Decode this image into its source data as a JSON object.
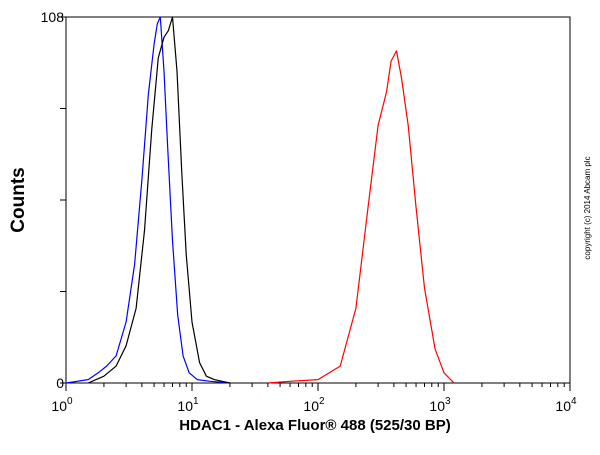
{
  "chart_data": {
    "type": "line",
    "title": "",
    "xlabel": "HDAC1 - Alexa Fluor® 488 (525/30 BP)",
    "ylabel": "Counts",
    "x_scale": "log",
    "xlim": [
      1,
      10000
    ],
    "ylim": [
      0,
      108
    ],
    "x_ticks": [
      {
        "base": "10",
        "exp": "0"
      },
      {
        "base": "10",
        "exp": "1"
      },
      {
        "base": "10",
        "exp": "2"
      },
      {
        "base": "10",
        "exp": "3"
      },
      {
        "base": "10",
        "exp": "4"
      }
    ],
    "y_ticks": [
      "0",
      "108"
    ],
    "grid": false,
    "legend": "none",
    "copyright": "copyright (c) 2014 Abcam plc",
    "series": [
      {
        "color": "#0000ff",
        "x": [
          1.0,
          1.5,
          1.8,
          2.1,
          2.5,
          3.0,
          3.5,
          4.0,
          4.5,
          5.0,
          5.3,
          5.6,
          6.0,
          6.4,
          7.0,
          7.7,
          8.5,
          9.5,
          11.0,
          14.0,
          20.0
        ],
        "y": [
          0,
          1,
          3,
          5,
          8,
          18,
          35,
          60,
          85,
          100,
          106,
          108,
          92,
          70,
          42,
          20,
          8,
          3,
          1,
          0.5,
          0
        ]
      },
      {
        "color": "#000000",
        "x": [
          1.5,
          2.0,
          2.5,
          3.0,
          3.6,
          4.2,
          4.8,
          5.4,
          6.0,
          6.5,
          7.0,
          7.6,
          8.3,
          9.0,
          10.0,
          11.5,
          13.0,
          15.0,
          20.0
        ],
        "y": [
          0,
          2,
          5,
          11,
          22,
          45,
          75,
          96,
          102,
          104,
          108,
          92,
          62,
          38,
          18,
          6,
          2,
          1,
          0
        ]
      },
      {
        "color": "#ff0000",
        "x": [
          40,
          60,
          100,
          150,
          200,
          250,
          300,
          350,
          380,
          420,
          460,
          520,
          600,
          700,
          850,
          1000,
          1200
        ],
        "y": [
          0,
          0.5,
          1,
          5,
          22,
          52,
          76,
          86,
          95,
          98,
          90,
          76,
          52,
          28,
          10,
          3,
          0
        ]
      }
    ]
  }
}
